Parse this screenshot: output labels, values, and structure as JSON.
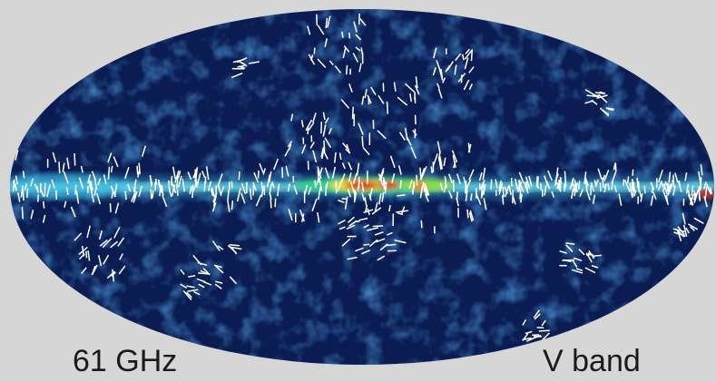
{
  "labels": {
    "frequency": "61 GHz",
    "band": "V band"
  }
}
